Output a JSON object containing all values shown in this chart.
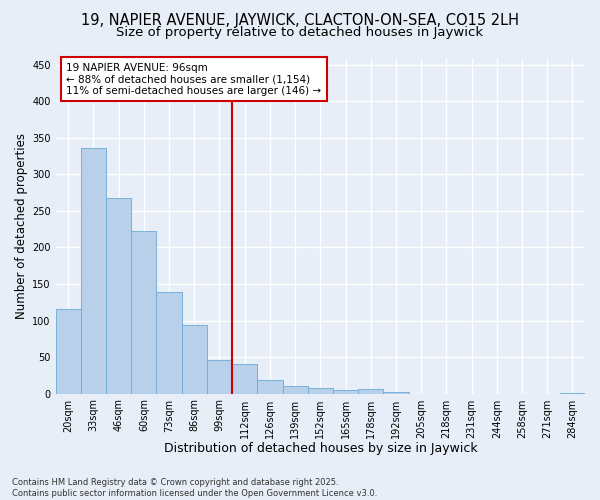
{
  "title1": "19, NAPIER AVENUE, JAYWICK, CLACTON-ON-SEA, CO15 2LH",
  "title2": "Size of property relative to detached houses in Jaywick",
  "xlabel": "Distribution of detached houses by size in Jaywick",
  "ylabel": "Number of detached properties",
  "categories": [
    "20sqm",
    "33sqm",
    "46sqm",
    "60sqm",
    "73sqm",
    "86sqm",
    "99sqm",
    "112sqm",
    "126sqm",
    "139sqm",
    "152sqm",
    "165sqm",
    "178sqm",
    "192sqm",
    "205sqm",
    "218sqm",
    "231sqm",
    "244sqm",
    "258sqm",
    "271sqm",
    "284sqm"
  ],
  "values": [
    116,
    336,
    268,
    222,
    139,
    94,
    46,
    41,
    19,
    11,
    7,
    5,
    6,
    2,
    0,
    0,
    0,
    0,
    0,
    0,
    1
  ],
  "bar_color": "#b8d0ea",
  "bar_edge_color": "#6aaad4",
  "vline_index": 6,
  "vline_color": "#cc0000",
  "annotation_title": "19 NAPIER AVENUE: 96sqm",
  "annotation_line1": "← 88% of detached houses are smaller (1,154)",
  "annotation_line2": "11% of semi-detached houses are larger (146) →",
  "annotation_box_facecolor": "#ffffff",
  "annotation_box_edgecolor": "#cc0000",
  "ylim": [
    0,
    460
  ],
  "yticks": [
    0,
    50,
    100,
    150,
    200,
    250,
    300,
    350,
    400,
    450
  ],
  "fig_facecolor": "#e8eef7",
  "ax_facecolor": "#e8eef7",
  "grid_color": "#ffffff",
  "title1_fontsize": 10.5,
  "title2_fontsize": 9.5,
  "xlabel_fontsize": 9,
  "ylabel_fontsize": 8.5,
  "tick_fontsize": 7,
  "annotation_fontsize": 7.5,
  "footer_fontsize": 6,
  "footer": "Contains HM Land Registry data © Crown copyright and database right 2025.\nContains public sector information licensed under the Open Government Licence v3.0."
}
